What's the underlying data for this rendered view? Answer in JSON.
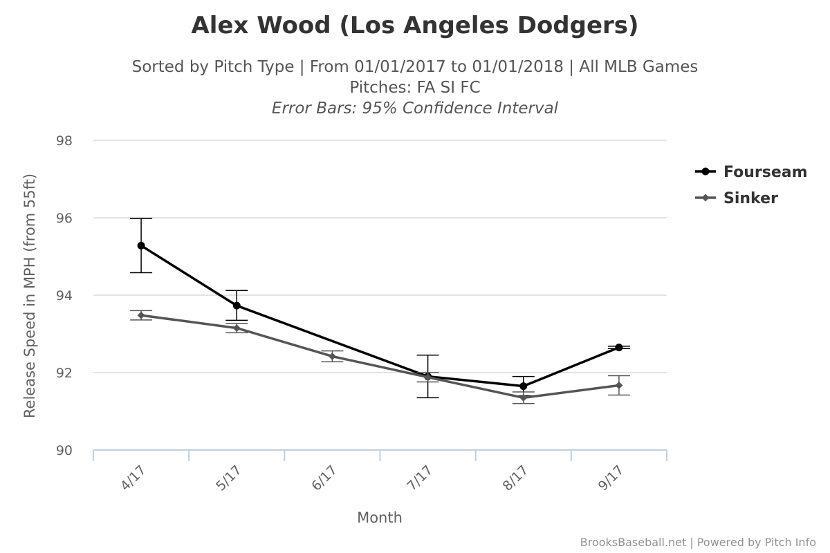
{
  "chart_data": {
    "type": "line",
    "title": "Alex Wood (Los Angeles Dodgers)",
    "subtitle_lines": [
      "Sorted by Pitch Type | From 01/01/2017 to 01/01/2018 | All MLB Games",
      "Pitches: FA SI FC",
      "Error Bars: 95% Confidence Interval"
    ],
    "xlabel": "Month",
    "ylabel": "Release Speed in MPH (from 55ft)",
    "categories": [
      "4/17",
      "5/17",
      "6/17",
      "7/17",
      "8/17",
      "9/17"
    ],
    "ylim": [
      90,
      98
    ],
    "yticks": [
      90,
      92,
      94,
      96,
      98
    ],
    "grid": true,
    "legend_position": "right",
    "series": [
      {
        "name": "Fourseam",
        "color": "#000000",
        "marker": "circle",
        "values": [
          95.28,
          93.73,
          null,
          91.9,
          91.65,
          92.65
        ],
        "error_low": [
          94.58,
          93.35,
          null,
          91.35,
          91.4,
          92.62
        ],
        "error_high": [
          95.98,
          94.12,
          null,
          92.45,
          91.9,
          92.68
        ]
      },
      {
        "name": "Sinker",
        "color": "#555555",
        "marker": "diamond",
        "values": [
          93.48,
          93.15,
          92.42,
          91.88,
          91.35,
          91.67
        ],
        "error_low": [
          93.36,
          93.03,
          92.28,
          91.76,
          91.2,
          91.42
        ],
        "error_high": [
          93.6,
          93.27,
          92.56,
          92.0,
          91.5,
          91.92
        ]
      }
    ]
  },
  "credits": "BrooksBaseball.net | Powered by Pitch Info"
}
